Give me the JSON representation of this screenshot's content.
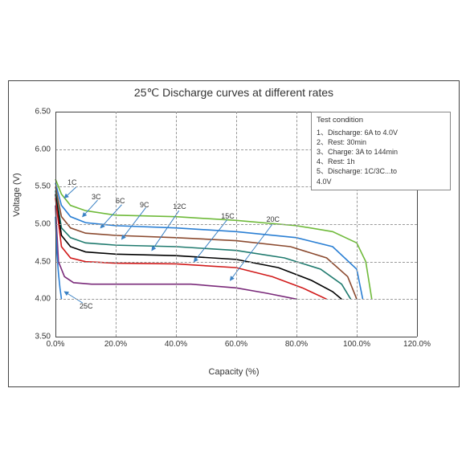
{
  "chart": {
    "type": "line",
    "title": "25℃ Discharge curves at different rates",
    "xlabel": "Capacity (%)",
    "ylabel": "Voltage (V)",
    "xlim": [
      0,
      120
    ],
    "ylim": [
      3.5,
      6.5
    ],
    "xtick_step": 20,
    "ytick_step": 0.5,
    "xticks": [
      "0.0%",
      "20.0%",
      "40.0%",
      "60.0%",
      "80.0%",
      "100.0%",
      "120.0%"
    ],
    "yticks": [
      "3.50",
      "4.00",
      "4.50",
      "5.00",
      "5.50",
      "6.00",
      "6.50"
    ],
    "grid_color": "#999",
    "background_color": "#ffffff",
    "border_color": "#444",
    "label_fontsize": 10,
    "title_fontsize": 14,
    "line_width": 1.6,
    "series": [
      {
        "name": "1C",
        "color": "#6fba3a",
        "points": [
          [
            0,
            5.6
          ],
          [
            2,
            5.4
          ],
          [
            5,
            5.25
          ],
          [
            10,
            5.18
          ],
          [
            20,
            5.12
          ],
          [
            40,
            5.1
          ],
          [
            60,
            5.05
          ],
          [
            80,
            4.98
          ],
          [
            92,
            4.9
          ],
          [
            100,
            4.75
          ],
          [
            103,
            4.5
          ],
          [
            105,
            4.0
          ]
        ]
      },
      {
        "name": "3C",
        "color": "#2a7fd4",
        "points": [
          [
            0,
            5.55
          ],
          [
            2,
            5.25
          ],
          [
            5,
            5.1
          ],
          [
            10,
            5.02
          ],
          [
            20,
            4.98
          ],
          [
            40,
            4.95
          ],
          [
            60,
            4.9
          ],
          [
            80,
            4.82
          ],
          [
            92,
            4.7
          ],
          [
            100,
            4.4
          ],
          [
            102,
            4.0
          ]
        ]
      },
      {
        "name": "6C",
        "color": "#8b4a2f",
        "points": [
          [
            0,
            5.5
          ],
          [
            2,
            5.1
          ],
          [
            5,
            4.95
          ],
          [
            10,
            4.88
          ],
          [
            20,
            4.85
          ],
          [
            40,
            4.82
          ],
          [
            60,
            4.78
          ],
          [
            78,
            4.7
          ],
          [
            90,
            4.55
          ],
          [
            97,
            4.3
          ],
          [
            100,
            4.0
          ]
        ]
      },
      {
        "name": "9C",
        "color": "#1f7a6e",
        "points": [
          [
            0,
            5.45
          ],
          [
            2,
            4.95
          ],
          [
            5,
            4.82
          ],
          [
            10,
            4.75
          ],
          [
            20,
            4.72
          ],
          [
            40,
            4.7
          ],
          [
            60,
            4.65
          ],
          [
            76,
            4.55
          ],
          [
            88,
            4.4
          ],
          [
            95,
            4.2
          ],
          [
            98,
            4.0
          ]
        ]
      },
      {
        "name": "12C",
        "color": "#000000",
        "points": [
          [
            0,
            5.4
          ],
          [
            2,
            4.85
          ],
          [
            5,
            4.7
          ],
          [
            10,
            4.63
          ],
          [
            20,
            4.6
          ],
          [
            40,
            4.58
          ],
          [
            60,
            4.53
          ],
          [
            74,
            4.42
          ],
          [
            85,
            4.25
          ],
          [
            92,
            4.1
          ],
          [
            95,
            4.0
          ]
        ]
      },
      {
        "name": "15C",
        "color": "#d11a1a",
        "points": [
          [
            0,
            5.35
          ],
          [
            2,
            4.7
          ],
          [
            5,
            4.55
          ],
          [
            10,
            4.5
          ],
          [
            20,
            4.48
          ],
          [
            40,
            4.47
          ],
          [
            60,
            4.42
          ],
          [
            72,
            4.3
          ],
          [
            82,
            4.15
          ],
          [
            90,
            4.0
          ]
        ]
      },
      {
        "name": "20C",
        "color": "#7a2a7a",
        "points": [
          [
            0,
            5.25
          ],
          [
            1,
            4.5
          ],
          [
            3,
            4.3
          ],
          [
            6,
            4.22
          ],
          [
            12,
            4.2
          ],
          [
            25,
            4.2
          ],
          [
            45,
            4.2
          ],
          [
            60,
            4.15
          ],
          [
            70,
            4.08
          ],
          [
            80,
            4.0
          ]
        ]
      },
      {
        "name": "25C",
        "color": "#2a7fd4",
        "points": [
          [
            0,
            5.1
          ],
          [
            0.5,
            4.6
          ],
          [
            1,
            4.35
          ],
          [
            1.5,
            4.15
          ],
          [
            2,
            4.0
          ]
        ]
      }
    ],
    "series_labels": [
      {
        "text": "1C",
        "x": 4,
        "y": 5.55
      },
      {
        "text": "3C",
        "x": 12,
        "y": 5.35
      },
      {
        "text": "6C",
        "x": 20,
        "y": 5.3
      },
      {
        "text": "9C",
        "x": 28,
        "y": 5.25
      },
      {
        "text": "12C",
        "x": 39,
        "y": 5.22
      },
      {
        "text": "15C",
        "x": 55,
        "y": 5.1
      },
      {
        "text": "20C",
        "x": 70,
        "y": 5.05
      },
      {
        "text": "25C",
        "x": 8,
        "y": 3.9
      }
    ],
    "arrows": [
      {
        "from": [
          7,
          5.5
        ],
        "to": [
          3,
          5.35
        ]
      },
      {
        "from": [
          14,
          5.32
        ],
        "to": [
          9,
          5.1
        ]
      },
      {
        "from": [
          22,
          5.26
        ],
        "to": [
          15,
          4.95
        ]
      },
      {
        "from": [
          30,
          5.22
        ],
        "to": [
          22,
          4.8
        ]
      },
      {
        "from": [
          41,
          5.18
        ],
        "to": [
          32,
          4.65
        ]
      },
      {
        "from": [
          57,
          5.06
        ],
        "to": [
          46,
          4.5
        ]
      },
      {
        "from": [
          72,
          5.0
        ],
        "to": [
          58,
          4.25
        ]
      },
      {
        "from": [
          9,
          3.95
        ],
        "to": [
          3,
          4.1
        ]
      }
    ],
    "legend": {
      "title": "Test condition",
      "lines": [
        "1、Discharge:  6A to 4.0V",
        "2、Rest:  30min",
        "3、Charge:  3A to 144min",
        "4、Rest:  1h",
        "5、Discharge:  1C/3C...to",
        "     4.0V"
      ]
    }
  }
}
